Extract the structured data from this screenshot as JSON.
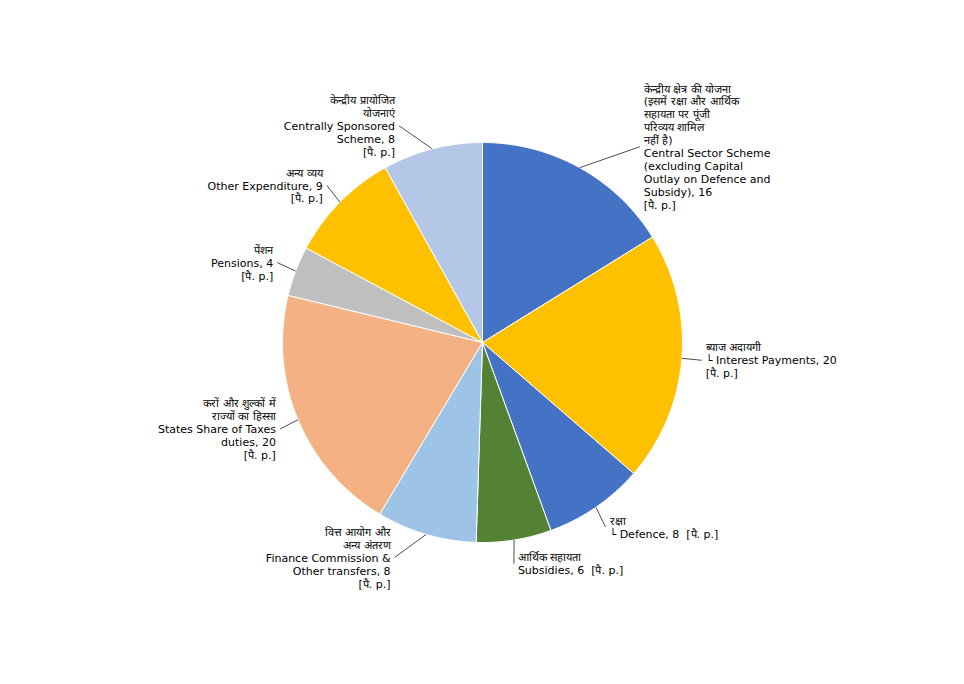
{
  "chart_data": {
    "type": "pie",
    "categories": [
      "केन्द्रीय क्षेत्र की योजना\n(इसमें रक्षा और आर्थिक\nसहायता पर पूंजी\nपरिव्यय शामिल\nनहीं है)\nCentral Sector Scheme\n(excluding Capital\nOutlay on Defence and\nSubsidy), 16\n[पै. p.]",
      "ब्याज अदायगी\n└ Interest Payments, 20\n[पै. p.]",
      "रक्षा\n└ Defence, 8  [पै. p.]",
      "आर्थिक सहायता\nSubsidies, 6  [पै. p.]",
      "वित्त आयोग और\nअन्य अंतरण\nFinance Commission &\nOther transfers, 8\n[पै. p.]",
      "करों और शुल्कों में\nराज्यों का हिस्सा\nStates Share of Taxes\nduties, 20\n[पै. p.]",
      "पेंशन\nPensions, 4\n[पै. p.]",
      "अन्य व्यय\nOther Expenditure, 9\n[पै. p.]",
      "केन्द्रीय प्रायोजित\nयोजनाएं\nCentrally Sponsored\nScheme, 8\n[पै. p.]"
    ],
    "values": [
      16,
      20,
      8,
      6,
      8,
      20,
      4,
      9,
      8
    ],
    "colors": [
      "#4472C4",
      "#FFC000",
      "#4472C4",
      "#548235",
      "#9DC3E6",
      "#F4B183",
      "#BFBFBF",
      "#FFC000",
      "#B4C7E7"
    ]
  }
}
